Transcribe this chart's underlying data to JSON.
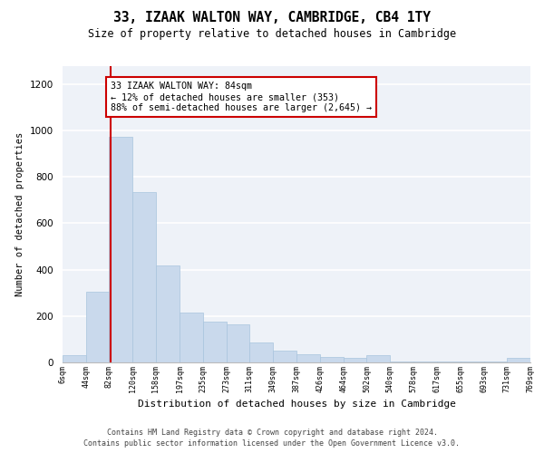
{
  "title": "33, IZAAK WALTON WAY, CAMBRIDGE, CB4 1TY",
  "subtitle": "Size of property relative to detached houses in Cambridge",
  "xlabel": "Distribution of detached houses by size in Cambridge",
  "ylabel": "Number of detached properties",
  "bar_color": "#c9d9ec",
  "bar_edge_color": "#a8c4dd",
  "background_color": "#eef2f8",
  "grid_color": "#ffffff",
  "vline_x": 84,
  "vline_color": "#cc0000",
  "annotation_text": "33 IZAAK WALTON WAY: 84sqm\n← 12% of detached houses are smaller (353)\n88% of semi-detached houses are larger (2,645) →",
  "annotation_box_color": "#ffffff",
  "annotation_box_edge": "#cc0000",
  "footer_line1": "Contains HM Land Registry data © Crown copyright and database right 2024.",
  "footer_line2": "Contains public sector information licensed under the Open Government Licence v3.0.",
  "bin_edges": [
    6,
    44,
    82,
    120,
    158,
    197,
    235,
    273,
    311,
    349,
    387,
    426,
    464,
    502,
    540,
    578,
    617,
    655,
    693,
    731,
    769
  ],
  "bar_heights": [
    30,
    305,
    975,
    735,
    420,
    215,
    175,
    165,
    85,
    50,
    35,
    25,
    20,
    30,
    5,
    5,
    5,
    5,
    5,
    20
  ],
  "ylim": [
    0,
    1280
  ],
  "yticks": [
    0,
    200,
    400,
    600,
    800,
    1000,
    1200
  ]
}
